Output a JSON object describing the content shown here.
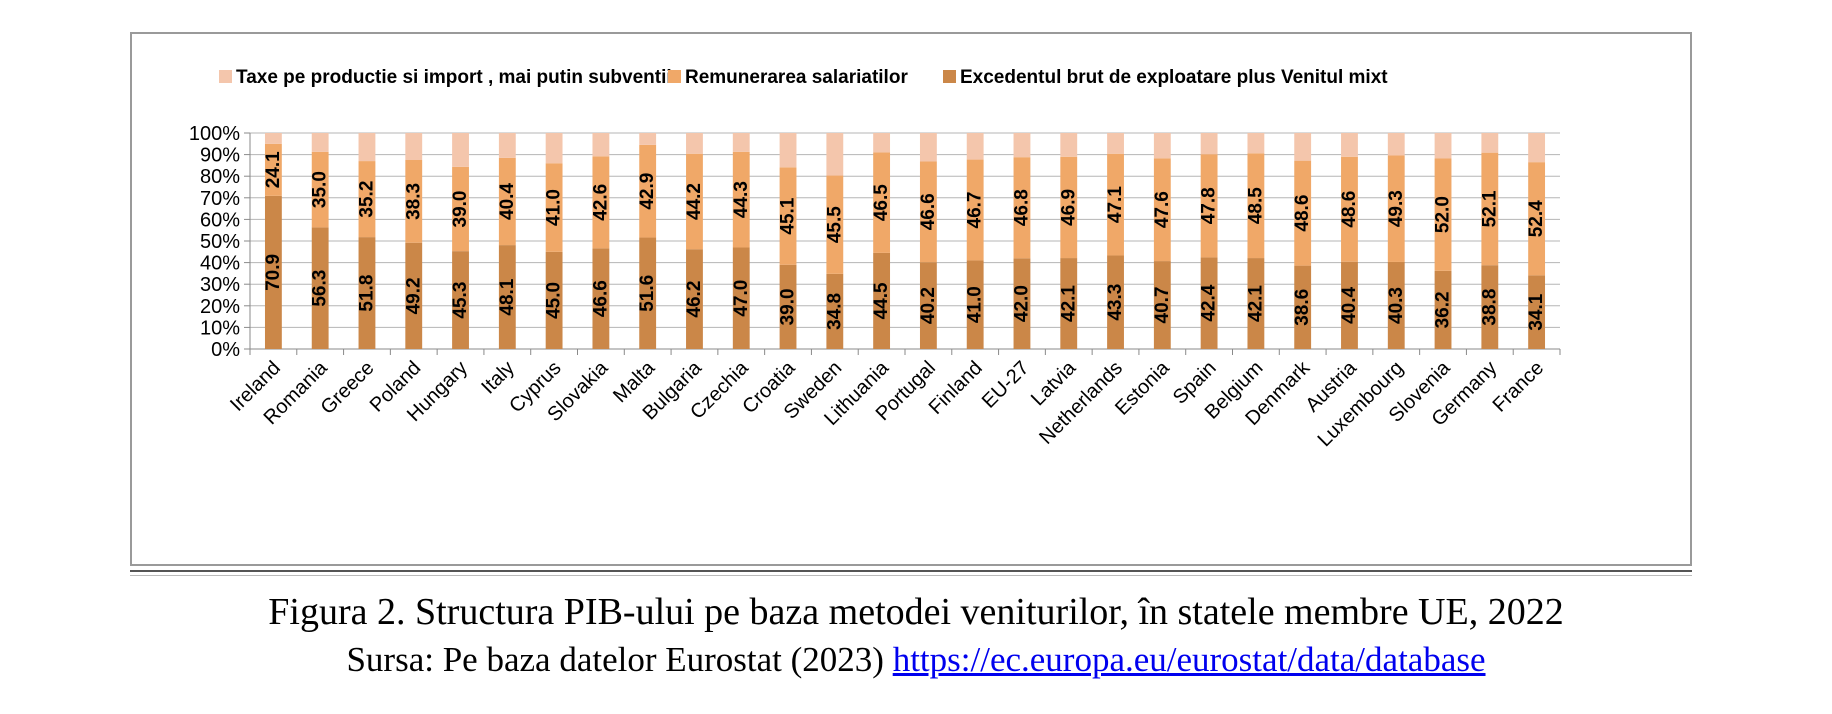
{
  "caption": "Figura 2. Structura PIB-ului pe baza  metodei veniturilor, în statele membre UE, 2022",
  "source": {
    "prefix": "Sursa: Pe baza datelor Eurostat (2023) ",
    "link": "https://ec.europa.eu/eurostat/data/database"
  },
  "colors": {
    "taxes": "#F4C6AC",
    "compensation": "#F0A868",
    "surplus": "#CB8748"
  },
  "chart_data": {
    "type": "bar",
    "stacked": true,
    "percent_stacked": true,
    "legend_position": "top",
    "grid": true,
    "ylim": [
      0,
      100
    ],
    "yticks": [
      "0%",
      "10%",
      "20%",
      "30%",
      "40%",
      "50%",
      "60%",
      "70%",
      "80%",
      "90%",
      "100%"
    ],
    "categories": [
      "Ireland",
      "Romania",
      "Greece",
      "Poland",
      "Hungary",
      "Italy",
      "Cyprus",
      "Slovakia",
      "Malta",
      "Bulgaria",
      "Czechia",
      "Croatia",
      "Sweden",
      "Lithuania",
      "Portugal",
      "Finland",
      "EU-27",
      "Latvia",
      "Netherlands",
      "Estonia",
      "Spain",
      "Belgium",
      "Denmark",
      "Austria",
      "Luxembourg",
      "Slovenia",
      "Germany",
      "France"
    ],
    "series": [
      {
        "name": "Excedentul brut de exploatare plus Venitul mixt",
        "values": [
          70.9,
          56.3,
          51.8,
          49.2,
          45.3,
          48.1,
          45.0,
          46.6,
          51.6,
          46.2,
          47.0,
          39.0,
          34.8,
          44.5,
          40.2,
          41.0,
          42.0,
          42.1,
          43.3,
          40.7,
          42.4,
          42.1,
          38.6,
          40.4,
          40.3,
          36.2,
          38.8,
          34.1
        ],
        "labels": [
          "70.9",
          "56.3",
          "51.8",
          "49.2",
          "45.3",
          "48.1",
          "45.0",
          "46.6",
          "51.6",
          "46.2",
          "47.0",
          "39.0",
          "34.8",
          "44.5",
          "40.2",
          "41.0",
          "42.0",
          "42.1",
          "43.3",
          "40.7",
          "42.4",
          "42.1",
          "38.6",
          "40.4",
          "40.3",
          "36.2",
          "38.8",
          "34.1"
        ]
      },
      {
        "name": "Remunerarea salariatilor",
        "values": [
          24.1,
          35.0,
          35.2,
          38.3,
          39.0,
          40.4,
          41.0,
          42.6,
          42.9,
          44.2,
          44.3,
          45.1,
          45.5,
          46.5,
          46.6,
          46.7,
          46.8,
          46.9,
          47.1,
          47.6,
          47.8,
          48.5,
          48.6,
          48.6,
          49.3,
          52.0,
          52.1,
          52.4
        ],
        "labels": [
          "24.1",
          "35.0",
          "35.2",
          "38.3",
          "39.0",
          "40.4",
          "41.0",
          "42.6",
          "42.9",
          "44.2",
          "44.3",
          "45.1",
          "45.5",
          "46.5",
          "46.6",
          "46.7",
          "46.8",
          "46.9",
          "47.1",
          "47.6",
          "47.8",
          "48.5",
          "48.6",
          "48.6",
          "49.3",
          "52.0",
          "52.1",
          "52.4"
        ]
      },
      {
        "name": "Taxe pe productie si import , mai putin subventii",
        "values": [
          5.0,
          8.7,
          13.0,
          12.5,
          15.7,
          11.5,
          14.0,
          10.8,
          5.5,
          9.6,
          8.7,
          15.9,
          19.7,
          9.0,
          13.2,
          12.3,
          11.2,
          11.0,
          9.6,
          11.7,
          9.8,
          9.4,
          12.8,
          11.0,
          10.4,
          11.8,
          9.1,
          13.5
        ]
      }
    ],
    "legend_order": [
      2,
      1,
      0
    ]
  }
}
